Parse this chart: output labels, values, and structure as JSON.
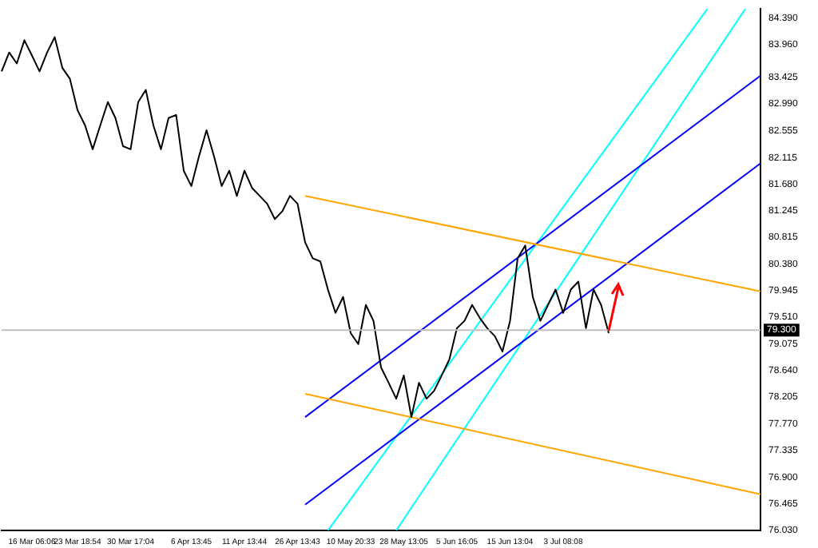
{
  "chart_data": {
    "type": "line",
    "legend": false,
    "grid": false,
    "marker": "none",
    "line_style": "solid",
    "categories": [
      null,
      null,
      null,
      null,
      "16 Mar 06:06",
      null,
      null,
      null,
      null,
      null,
      "23 Mar 18:54",
      null,
      null,
      null,
      null,
      null,
      null,
      "30 Mar 17:04",
      null,
      null,
      null,
      null,
      null,
      null,
      null,
      "6 Apr 13:45",
      null,
      null,
      null,
      null,
      null,
      null,
      "11 Apr 13:44",
      null,
      null,
      null,
      null,
      null,
      null,
      "26 Apr 13:43",
      null,
      null,
      null,
      null,
      null,
      null,
      "10 May 20:33",
      null,
      null,
      null,
      null,
      null,
      null,
      "28 May 13:05",
      null,
      null,
      null,
      null,
      null,
      null,
      "5 Jun 16:05",
      null,
      null,
      null,
      null,
      null,
      null,
      "15 Jun 13:04",
      null,
      null,
      null,
      null,
      null,
      null,
      "3 Jul 08:08",
      null,
      null,
      null,
      null,
      null,
      null,
      null,
      null,
      null,
      null,
      null,
      null,
      null,
      null,
      null,
      null,
      null,
      null,
      null,
      null,
      null,
      null,
      null,
      null,
      null,
      null
    ],
    "ylim": [
      76.03,
      84.54
    ],
    "yticks": [
      {
        "value": 84.39,
        "label": "84.390"
      },
      {
        "value": 83.96,
        "label": "83.960"
      },
      {
        "value": 83.425,
        "label": "83.425"
      },
      {
        "value": 82.99,
        "label": "82.990"
      },
      {
        "value": 82.555,
        "label": "82.555"
      },
      {
        "value": 82.115,
        "label": "82.115"
      },
      {
        "value": 81.68,
        "label": "81.680"
      },
      {
        "value": 81.245,
        "label": "81.245"
      },
      {
        "value": 80.815,
        "label": "80.815"
      },
      {
        "value": 80.38,
        "label": "80.380"
      },
      {
        "value": 79.945,
        "label": "79.945"
      },
      {
        "value": 79.51,
        "label": "79.510"
      },
      {
        "value": 79.075,
        "label": "79.075"
      },
      {
        "value": 78.64,
        "label": "78.640"
      },
      {
        "value": 78.205,
        "label": "78.205"
      },
      {
        "value": 77.77,
        "label": "77.770"
      },
      {
        "value": 77.335,
        "label": "77.335"
      },
      {
        "value": 76.9,
        "label": "76.900"
      },
      {
        "value": 76.465,
        "label": "76.465"
      },
      {
        "value": 76.03,
        "label": "76.030"
      }
    ],
    "ref_lines": [
      {
        "axis": "y",
        "value": 79.3,
        "label": "79.300",
        "color": "#c0c0c0"
      }
    ],
    "series": [
      {
        "color": "#000000",
        "values": [
          83.52,
          83.83,
          83.65,
          84.03,
          83.78,
          83.52,
          83.83,
          84.08,
          83.58,
          83.4,
          82.89,
          82.64,
          82.25,
          82.64,
          83.02,
          82.76,
          82.3,
          82.25,
          83.02,
          83.22,
          82.64,
          82.25,
          82.76,
          82.81,
          81.9,
          81.65,
          82.13,
          82.56,
          82.13,
          81.65,
          81.9,
          81.49,
          81.9,
          81.62,
          81.49,
          81.36,
          81.11,
          81.24,
          81.49,
          81.36,
          80.73,
          80.47,
          80.42,
          79.96,
          79.58,
          79.84,
          79.25,
          79.07,
          79.71,
          79.45,
          78.69,
          78.44,
          78.18,
          78.56,
          77.88,
          78.44,
          78.18,
          78.31,
          78.56,
          78.82,
          79.33,
          79.45,
          79.71,
          79.5,
          79.33,
          79.2,
          78.95,
          79.45,
          80.47,
          80.68,
          79.84,
          79.45,
          79.71,
          79.96,
          79.58,
          79.96,
          80.09,
          79.33,
          79.96,
          79.71,
          79.25,
          null,
          null,
          null,
          null,
          null,
          null,
          null,
          null,
          null,
          null,
          null,
          null,
          null,
          null,
          null,
          null,
          null,
          null,
          null,
          null
        ]
      },
      {
        "color": "#ffa500",
        "values": [
          null,
          null,
          null,
          null,
          null,
          null,
          null,
          null,
          null,
          null,
          null,
          null,
          null,
          null,
          null,
          null,
          null,
          null,
          null,
          null,
          null,
          null,
          null,
          null,
          null,
          null,
          null,
          null,
          null,
          null,
          null,
          null,
          null,
          null,
          null,
          null,
          null,
          null,
          null,
          null,
          81.49,
          null,
          null,
          null,
          null,
          null,
          null,
          null,
          null,
          null,
          null,
          null,
          null,
          null,
          null,
          null,
          null,
          null,
          null,
          null,
          null,
          null,
          null,
          null,
          null,
          null,
          null,
          null,
          null,
          null,
          null,
          null,
          null,
          null,
          null,
          null,
          null,
          null,
          null,
          null,
          null,
          null,
          null,
          null,
          null,
          null,
          null,
          null,
          null,
          null,
          null,
          null,
          null,
          null,
          null,
          null,
          null,
          null,
          null,
          null,
          79.93
        ]
      },
      {
        "color": "#ffa500",
        "values": [
          null,
          null,
          null,
          null,
          null,
          null,
          null,
          null,
          null,
          null,
          null,
          null,
          null,
          null,
          null,
          null,
          null,
          null,
          null,
          null,
          null,
          null,
          null,
          null,
          null,
          null,
          null,
          null,
          null,
          null,
          null,
          null,
          null,
          null,
          null,
          null,
          null,
          null,
          null,
          null,
          78.26,
          null,
          null,
          null,
          null,
          null,
          null,
          null,
          null,
          null,
          null,
          null,
          null,
          null,
          null,
          null,
          null,
          null,
          null,
          null,
          null,
          null,
          null,
          null,
          null,
          null,
          null,
          null,
          null,
          null,
          null,
          null,
          null,
          null,
          null,
          null,
          null,
          null,
          null,
          null,
          null,
          null,
          null,
          null,
          null,
          null,
          null,
          null,
          null,
          null,
          null,
          null,
          null,
          null,
          null,
          null,
          null,
          null,
          null,
          null,
          76.62
        ]
      },
      {
        "color": "#0000ff",
        "values": [
          null,
          null,
          null,
          null,
          null,
          null,
          null,
          null,
          null,
          null,
          null,
          null,
          null,
          null,
          null,
          null,
          null,
          null,
          null,
          null,
          null,
          null,
          null,
          null,
          null,
          null,
          null,
          null,
          null,
          null,
          null,
          null,
          null,
          null,
          null,
          null,
          null,
          null,
          null,
          null,
          77.88,
          null,
          null,
          null,
          null,
          null,
          null,
          null,
          null,
          null,
          null,
          null,
          null,
          null,
          null,
          null,
          null,
          null,
          null,
          null,
          null,
          null,
          null,
          null,
          null,
          null,
          null,
          null,
          null,
          null,
          null,
          null,
          null,
          null,
          null,
          null,
          null,
          null,
          null,
          null,
          null,
          null,
          null,
          null,
          null,
          null,
          null,
          null,
          null,
          null,
          null,
          null,
          null,
          null,
          null,
          null,
          null,
          null,
          null,
          null,
          83.45
        ]
      },
      {
        "color": "#0000ff",
        "values": [
          null,
          null,
          null,
          null,
          null,
          null,
          null,
          null,
          null,
          null,
          null,
          null,
          null,
          null,
          null,
          null,
          null,
          null,
          null,
          null,
          null,
          null,
          null,
          null,
          null,
          null,
          null,
          null,
          null,
          null,
          null,
          null,
          null,
          null,
          null,
          null,
          null,
          null,
          null,
          null,
          76.45,
          null,
          null,
          null,
          null,
          null,
          null,
          null,
          null,
          null,
          null,
          null,
          null,
          null,
          null,
          null,
          null,
          null,
          null,
          null,
          null,
          null,
          null,
          null,
          null,
          null,
          null,
          null,
          null,
          null,
          null,
          null,
          null,
          null,
          null,
          null,
          null,
          null,
          null,
          null,
          null,
          null,
          null,
          null,
          null,
          null,
          null,
          null,
          null,
          null,
          null,
          null,
          null,
          null,
          null,
          null,
          null,
          null,
          null,
          null,
          82.02
        ]
      },
      {
        "color": "#00ffff",
        "values": [
          null,
          null,
          null,
          null,
          null,
          null,
          null,
          null,
          null,
          null,
          null,
          null,
          null,
          null,
          null,
          null,
          null,
          null,
          null,
          null,
          null,
          null,
          null,
          null,
          null,
          null,
          null,
          null,
          null,
          null,
          null,
          null,
          null,
          null,
          null,
          null,
          null,
          null,
          null,
          null,
          null,
          null,
          null,
          76.03,
          null,
          null,
          null,
          null,
          null,
          null,
          null,
          null,
          null,
          null,
          null,
          null,
          null,
          null,
          null,
          null,
          null,
          null,
          null,
          null,
          null,
          null,
          null,
          null,
          null,
          null,
          null,
          null,
          null,
          null,
          null,
          null,
          null,
          null,
          null,
          null,
          null,
          null,
          null,
          null,
          null,
          null,
          null,
          null,
          null,
          null,
          null,
          null,
          null,
          84.54,
          null,
          null,
          null,
          null,
          null,
          null,
          null
        ]
      },
      {
        "color": "#00ffff",
        "values": [
          null,
          null,
          null,
          null,
          null,
          null,
          null,
          null,
          null,
          null,
          null,
          null,
          null,
          null,
          null,
          null,
          null,
          null,
          null,
          null,
          null,
          null,
          null,
          null,
          null,
          null,
          null,
          null,
          null,
          null,
          null,
          null,
          null,
          null,
          null,
          null,
          null,
          null,
          null,
          null,
          null,
          null,
          null,
          null,
          null,
          null,
          null,
          null,
          null,
          null,
          null,
          null,
          76.03,
          null,
          null,
          null,
          null,
          null,
          null,
          null,
          null,
          null,
          null,
          null,
          null,
          null,
          null,
          null,
          null,
          null,
          null,
          null,
          null,
          null,
          null,
          null,
          null,
          null,
          null,
          null,
          null,
          null,
          null,
          null,
          null,
          null,
          null,
          null,
          null,
          null,
          null,
          null,
          null,
          null,
          null,
          null,
          null,
          null,
          84.54,
          null,
          null
        ]
      }
    ]
  }
}
